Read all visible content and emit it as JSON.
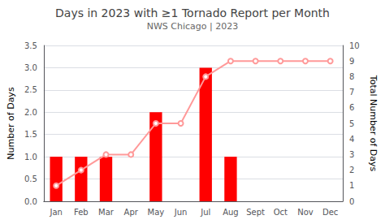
{
  "chart_data": {
    "type": "bar",
    "title": "Days in 2023 with ≥1 Tornado Report per Month",
    "subtitle": "NWS Chicago | 2023",
    "ylabel": "Number of Days",
    "y2label": "Total Number of Days",
    "categories": [
      "Jan",
      "Feb",
      "Mar",
      "Apr",
      "May",
      "Jun",
      "Jul",
      "Aug",
      "Sept",
      "Oct",
      "Nov",
      "Dec"
    ],
    "series": [
      {
        "type": "bar",
        "color": "#FF0000",
        "values": [
          1,
          1,
          1,
          0,
          2,
          0,
          3,
          1,
          0,
          0,
          0,
          0
        ]
      },
      {
        "type": "line",
        "color": "#FF9999",
        "axis": "y2",
        "values": [
          1,
          2,
          3,
          3,
          5,
          5,
          8,
          9,
          9,
          9,
          9,
          9
        ]
      }
    ],
    "ylim": [
      0,
      3.5
    ],
    "yticks": [
      {
        "value": 0,
        "label": "0.0"
      },
      0.5,
      {
        "value": 1,
        "label": "1.0"
      },
      1.5,
      {
        "value": 2,
        "label": "2.0"
      },
      2.5,
      {
        "value": 3,
        "label": "3.0"
      },
      3.5
    ],
    "y2lim": [
      0,
      10
    ],
    "y2ticks": [
      0,
      1,
      2,
      3,
      4,
      5,
      6,
      7,
      8,
      9,
      10
    ],
    "grid": true
  }
}
